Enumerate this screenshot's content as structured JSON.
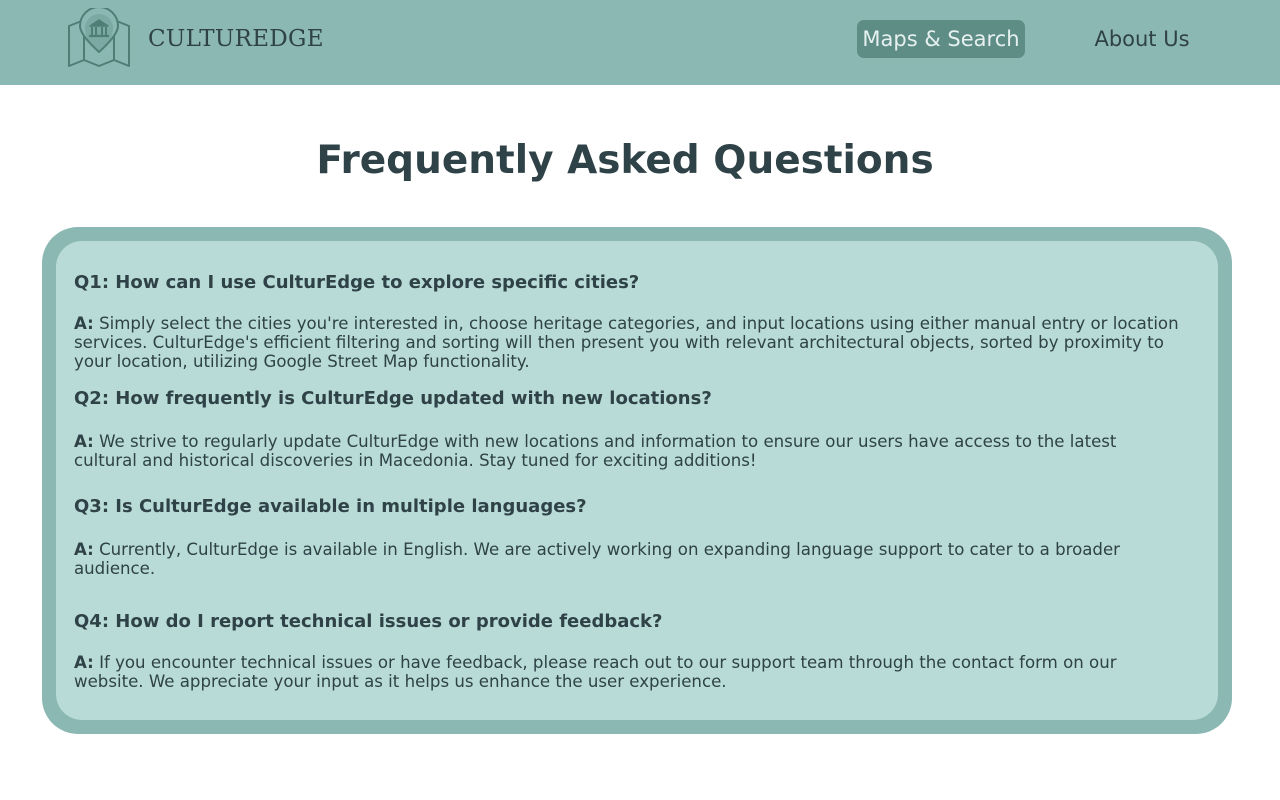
{
  "brand": {
    "name": "CULTUREDGE"
  },
  "nav": {
    "maps_label": "Maps & Search",
    "about_label": "About Us"
  },
  "page": {
    "title": "Frequently Asked Questions"
  },
  "faq": {
    "answer_prefix": "A:",
    "items": [
      {
        "question": "Q1: How can I use CulturEdge to explore specific cities?",
        "answer": "Simply select the cities you're interested in, choose heritage categories, and input locations using either manual entry or location services. CulturEdge's efficient filtering and sorting will then present you with relevant architectural objects, sorted by proximity to your location, utilizing Google Street Map functionality."
      },
      {
        "question": "Q2: How frequently is CulturEdge updated with new locations?",
        "answer": "We strive to regularly update CulturEdge with new locations and information to ensure our users have access to the latest cultural and historical discoveries in Macedonia. Stay tuned for exciting additions!"
      },
      {
        "question": "Q3: Is CulturEdge available in multiple languages?",
        "answer": "Currently, CulturEdge is available in English. We are actively working on expanding language support to cater to a broader audience."
      },
      {
        "question": "Q4: How do I report technical issues or provide feedback?",
        "answer": "If you encounter technical issues or have feedback, please reach out to our support team through the contact form on our website. We appreciate your input as it helps us enhance the user experience."
      }
    ]
  },
  "colors": {
    "header_bg": "#8cb8b3",
    "active_nav_bg": "#5e8d86",
    "panel_border": "#8cb8b3",
    "panel_bg": "#b8dbd7",
    "text": "#2f4247"
  },
  "icons": {
    "logo": "museum-map-icon"
  }
}
